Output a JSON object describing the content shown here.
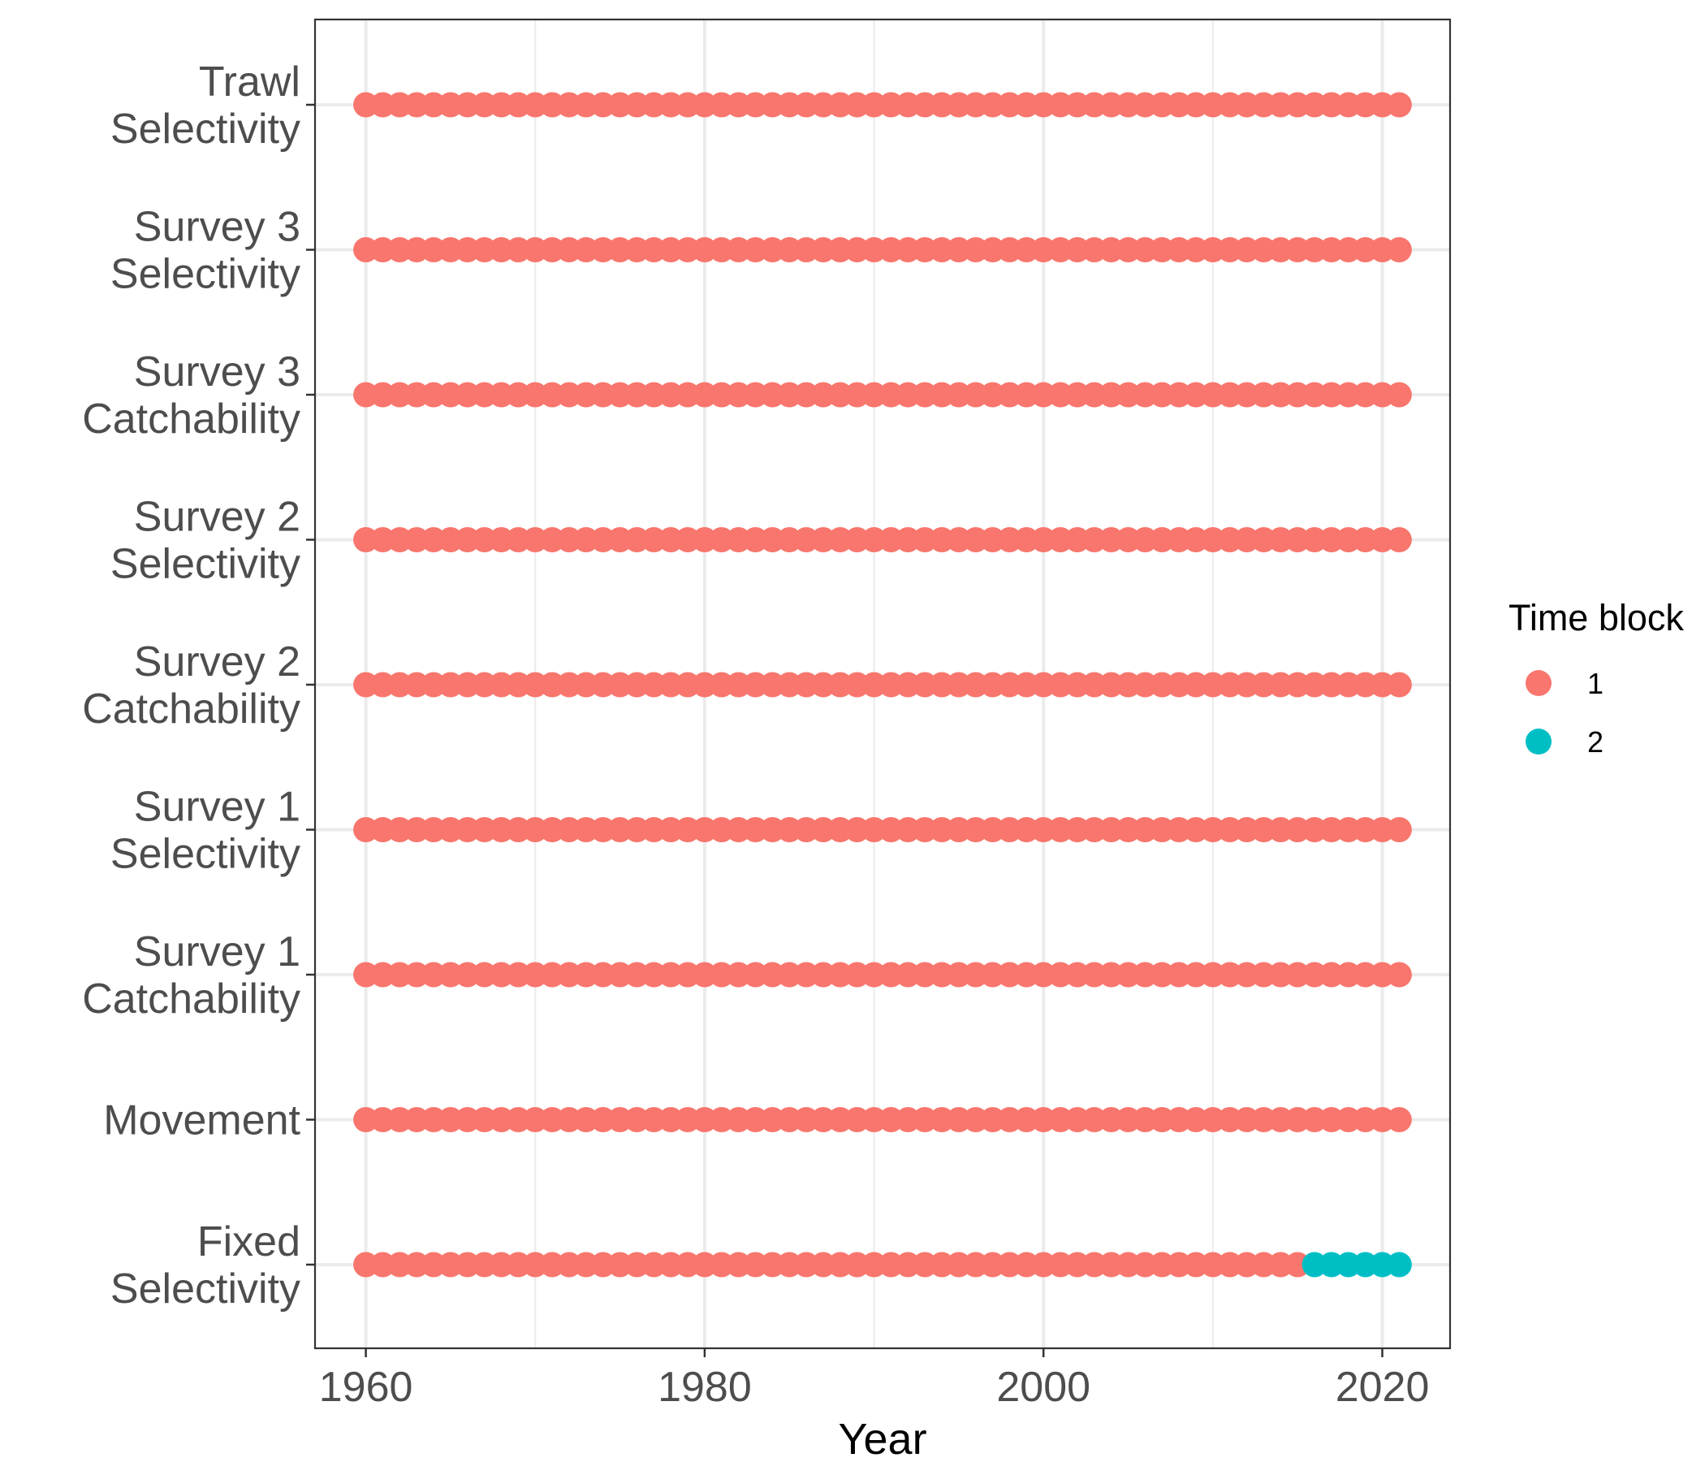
{
  "chart_data": {
    "type": "scatter",
    "title": "",
    "xlabel": "Year",
    "ylabel": "",
    "xlim": [
      1957,
      2024
    ],
    "x_ticks": [
      1960,
      1980,
      2000,
      2020
    ],
    "years": [
      1960,
      2021
    ],
    "categories": [
      [
        "Trawl",
        "Selectivity"
      ],
      [
        "Survey 3",
        "Selectivity"
      ],
      [
        "Survey 3",
        "Catchability"
      ],
      [
        "Survey 2",
        "Selectivity"
      ],
      [
        "Survey 2",
        "Catchability"
      ],
      [
        "Survey 1",
        "Selectivity"
      ],
      [
        "Survey 1",
        "Catchability"
      ],
      [
        "Movement"
      ],
      [
        "Fixed",
        "Selectivity"
      ]
    ],
    "series": [
      {
        "category_index": 0,
        "blocks": [
          {
            "time_block": "1",
            "from": 1960,
            "to": 2021
          }
        ]
      },
      {
        "category_index": 1,
        "blocks": [
          {
            "time_block": "1",
            "from": 1960,
            "to": 2021
          }
        ]
      },
      {
        "category_index": 2,
        "blocks": [
          {
            "time_block": "1",
            "from": 1960,
            "to": 2021
          }
        ]
      },
      {
        "category_index": 3,
        "blocks": [
          {
            "time_block": "1",
            "from": 1960,
            "to": 2021
          }
        ]
      },
      {
        "category_index": 4,
        "blocks": [
          {
            "time_block": "1",
            "from": 1960,
            "to": 2021
          }
        ]
      },
      {
        "category_index": 5,
        "blocks": [
          {
            "time_block": "1",
            "from": 1960,
            "to": 2021
          }
        ]
      },
      {
        "category_index": 6,
        "blocks": [
          {
            "time_block": "1",
            "from": 1960,
            "to": 2021
          }
        ]
      },
      {
        "category_index": 7,
        "blocks": [
          {
            "time_block": "1",
            "from": 1960,
            "to": 2021
          }
        ]
      },
      {
        "category_index": 8,
        "blocks": [
          {
            "time_block": "1",
            "from": 1960,
            "to": 2015
          },
          {
            "time_block": "2",
            "from": 2016,
            "to": 2021
          }
        ]
      }
    ],
    "legend": {
      "title": "Time block",
      "placement": "right",
      "entries": [
        {
          "label": "1",
          "color": "#F8766D"
        },
        {
          "label": "2",
          "color": "#00BFC4"
        }
      ]
    },
    "grid": true,
    "colors": {
      "block1": "#F8766D",
      "block2": "#00BFC4",
      "grid": "#ebebeb",
      "panel_border": "#333333",
      "tick_text": "#4d4d4d"
    }
  }
}
